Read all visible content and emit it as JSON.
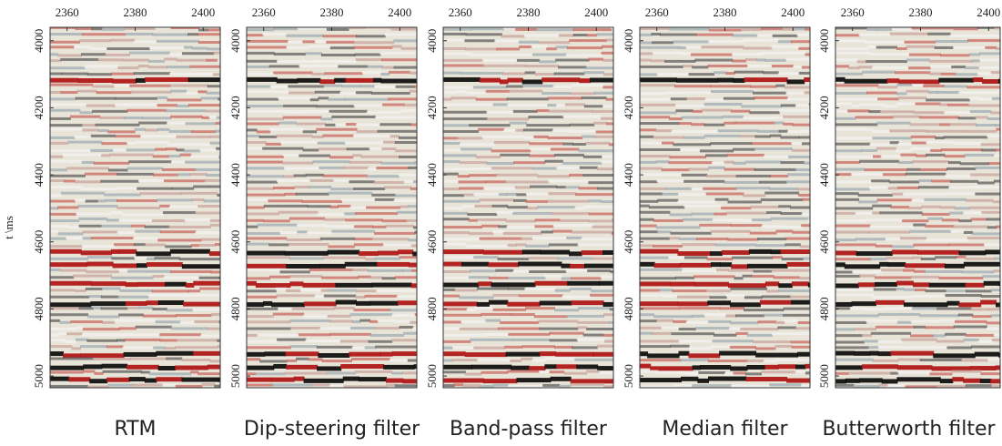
{
  "figure": {
    "ylabel": "t \\ms",
    "xlim": [
      2355,
      2405
    ],
    "xticks": [
      2360,
      2380,
      2400
    ],
    "ylim": [
      3960,
      5035
    ],
    "yticks": [
      4000,
      4200,
      4400,
      4600,
      4800,
      5000
    ],
    "panels": [
      "RTM",
      "Dip-steering filter",
      "Band-pass filter",
      "Median filter",
      "Butterworth filter"
    ]
  }
}
